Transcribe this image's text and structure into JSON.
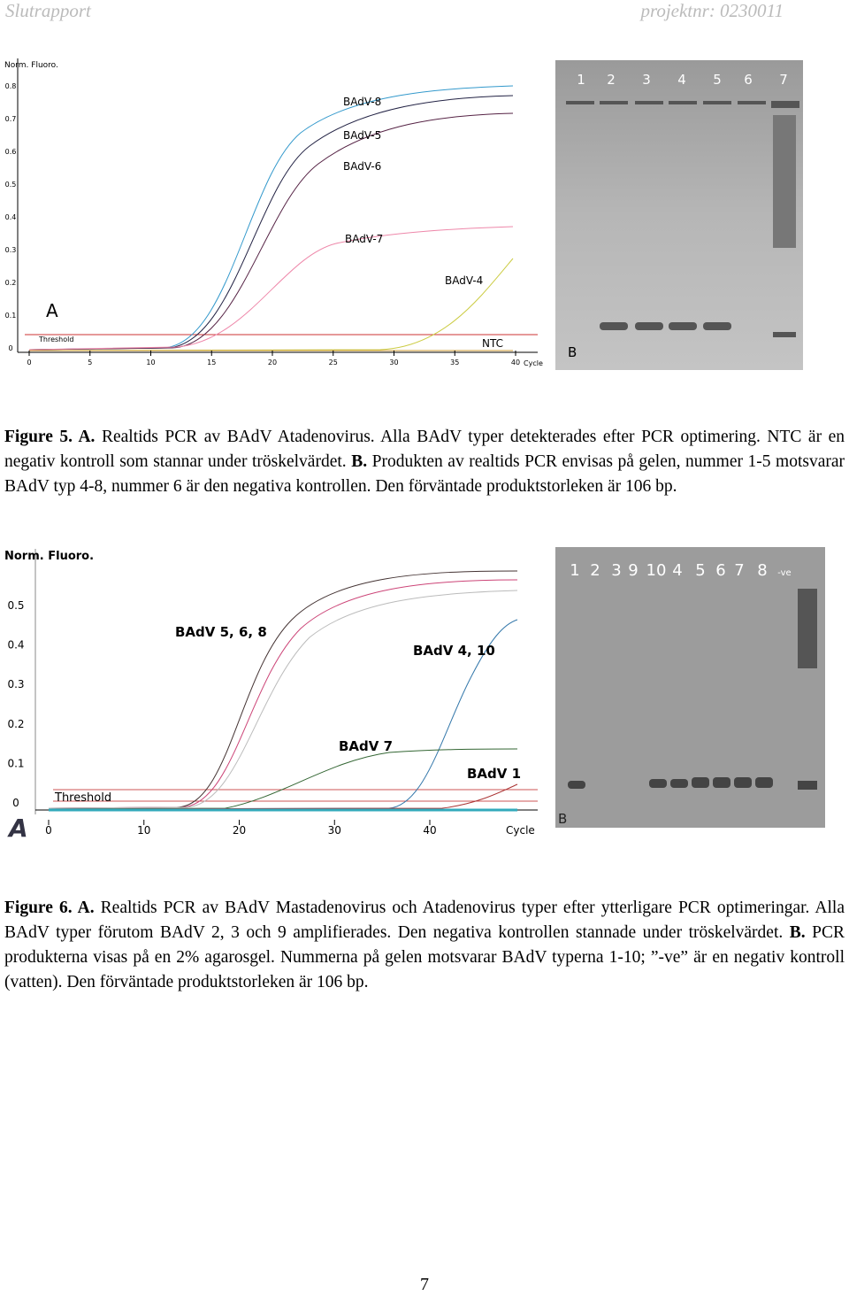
{
  "header": {
    "left": "Slutrapport",
    "right": "projektnr: 0230011"
  },
  "figure5": {
    "plot": {
      "y_label": "Norm. Fluoro.",
      "yticks": [
        "0.8",
        "0.7",
        "0.6",
        "0.5",
        "0.4",
        "0.3",
        "0.2",
        "0.1",
        "0"
      ],
      "xticks": [
        "0",
        "5",
        "10",
        "15",
        "20",
        "25",
        "30",
        "35",
        "40"
      ],
      "x_label": "Cycle",
      "panel": "A",
      "threshold": "Threshold",
      "curve_labels": [
        "BAdV-8",
        "BAdV-5",
        "BAdV-6",
        "BAdV-7",
        "BAdV-4",
        "NTC"
      ]
    },
    "gel": {
      "lanes": [
        "1",
        "2",
        "3",
        "4",
        "5",
        "6",
        "7"
      ],
      "panel": "B"
    },
    "caption": {
      "label_a": "Figure 5. A.",
      "text_a": "Realtids PCR av BAdV Atadenovirus. Alla BAdV typer detekterades efter PCR optimering. NTC är en negativ kontroll som stannar under tröskelvärdet.",
      "label_b": "B.",
      "text_b": "Produkten av realtids PCR envisas på gelen, nummer 1-5 motsvarar BAdV typ 4-8, nummer 6 är den negativa kontrollen. Den förväntade produktstorleken är 106 bp."
    }
  },
  "figure6": {
    "plot": {
      "y_label": "Norm. Fluoro.",
      "yticks": [
        "0.5",
        "0.4",
        "0.3",
        "0.2",
        "0.1",
        "0"
      ],
      "xticks": [
        "0",
        "10",
        "20",
        "30",
        "40"
      ],
      "x_label": "Cycle",
      "panel": "A",
      "threshold": "Threshold",
      "curve_labels": [
        "BAdV 5, 6, 8",
        "BAdV 4, 10",
        "BAdV 7",
        "BAdV 1"
      ]
    },
    "gel": {
      "lanes": [
        "1",
        "2",
        "3",
        "9",
        "10",
        "4",
        "5",
        "6",
        "7",
        "8",
        "-ve"
      ],
      "panel": "B"
    },
    "caption": {
      "label_a": "Figure 6. A.",
      "text_a": "Realtids PCR av BAdV Mastadenovirus och Atadenovirus typer efter ytterligare PCR optimeringar. Alla BAdV typer förutom BAdV 2, 3 och 9 amplifierades. Den negativa kontrollen stannade under tröskelvärdet.",
      "label_b": "B.",
      "text_b": "PCR produkterna visas på en 2% agarosgel. Nummerna på gelen motsvarar BAdV typerna 1-10; ”-ve” är en negativ kontroll (vatten). Den förväntade produktstorleken är 106 bp."
    }
  },
  "page_number": "7"
}
